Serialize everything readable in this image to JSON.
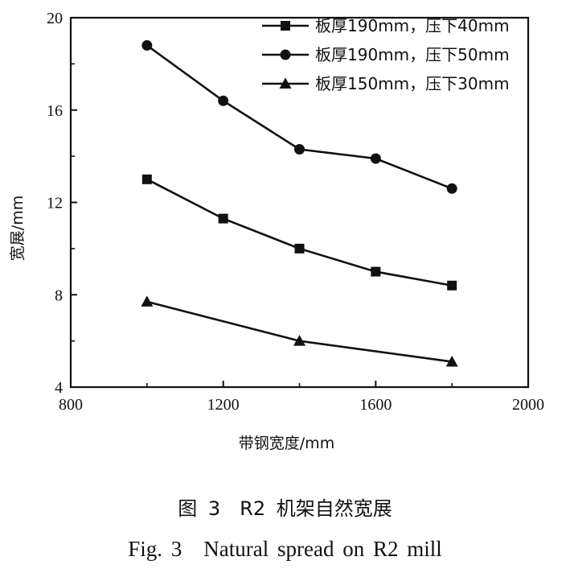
{
  "chart_data": {
    "type": "line",
    "xlabel": "带钢宽度/mm",
    "ylabel": "宽展/mm",
    "xlim": [
      800,
      2000
    ],
    "ylim": [
      4,
      20
    ],
    "xticks": [
      800,
      1200,
      1600,
      2000
    ],
    "yticks": [
      4,
      8,
      12,
      16,
      20
    ],
    "grid": false,
    "legend_position": "top-right",
    "x": [
      1000,
      1200,
      1400,
      1600,
      1800
    ],
    "series": [
      {
        "name": "板厚190mm，压下40mm",
        "marker": "square",
        "values": [
          13.0,
          11.3,
          10.0,
          9.0,
          8.4
        ]
      },
      {
        "name": "板厚190mm，压下50mm",
        "marker": "circle",
        "values": [
          18.8,
          16.4,
          14.3,
          13.9,
          12.6
        ]
      },
      {
        "name": "板厚150mm，压下30mm",
        "marker": "triangle",
        "values": [
          7.7,
          null,
          6.0,
          null,
          5.1
        ]
      }
    ]
  },
  "caption": {
    "chinese": "图 3　R2 机架自然宽展",
    "english": "Fig. 3　Natural spread on R2 mill"
  }
}
